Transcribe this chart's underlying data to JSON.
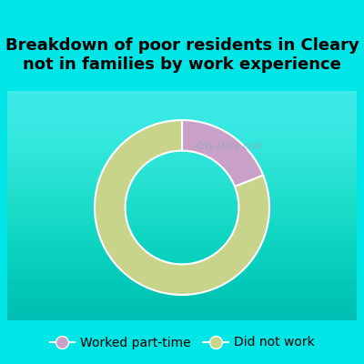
{
  "title": "Breakdown of poor residents in Cleary\nnot in families by work experience",
  "slices": [
    {
      "label": "Worked part-time",
      "value": 19,
      "color": "#c9a0c8"
    },
    {
      "label": "Did not work",
      "value": 81,
      "color": "#c8d48a"
    }
  ],
  "background_color": "#00e5e5",
  "title_fontsize": 13,
  "title_fontweight": "bold",
  "legend_fontsize": 10,
  "watermark": "City-Data.com",
  "start_angle": 90
}
